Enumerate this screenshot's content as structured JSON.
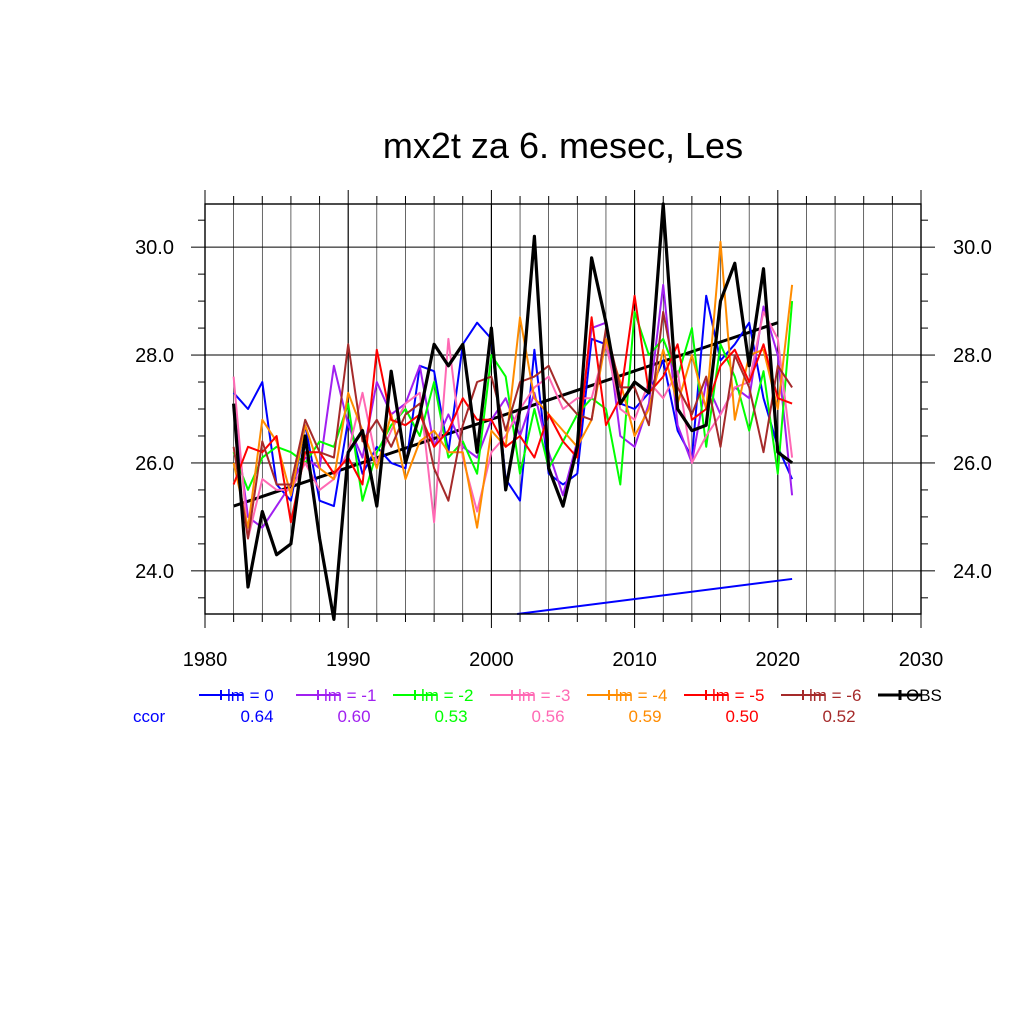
{
  "chart_data": {
    "type": "line",
    "title": "mx2t za 6. mesec, Les",
    "xlabel": "",
    "ylabel": "",
    "xlim": [
      1980,
      2030
    ],
    "ylim": [
      23.2,
      30.8
    ],
    "x_ticks": [
      "1980",
      "1990",
      "2000",
      "2010",
      "2020",
      "2030"
    ],
    "y_ticks": [
      "24.0",
      "26.0",
      "28.0",
      "30.0"
    ],
    "grid": true,
    "years": [
      1982,
      1983,
      1984,
      1985,
      1986,
      1987,
      1988,
      1989,
      1990,
      1991,
      1992,
      1993,
      1994,
      1995,
      1996,
      1997,
      1998,
      1999,
      2000,
      2001,
      2002,
      2003,
      2004,
      2005,
      2006,
      2007,
      2008,
      2009,
      2010,
      2011,
      2012,
      2013,
      2014,
      2015,
      2016,
      2017,
      2018,
      2019,
      2020,
      2021
    ],
    "series": [
      {
        "name": "lm = 0",
        "color": "#0000ff",
        "ccor": "0.64",
        "values": [
          27.3,
          27.0,
          27.5,
          25.6,
          25.3,
          26.7,
          25.3,
          25.2,
          26.8,
          25.8,
          26.3,
          26.0,
          25.9,
          27.8,
          27.7,
          26.2,
          28.2,
          28.6,
          28.3,
          25.7,
          25.3,
          28.1,
          25.8,
          25.6,
          25.8,
          28.3,
          28.2,
          27.1,
          27.0,
          27.3,
          27.9,
          26.6,
          26.1,
          29.1,
          27.9,
          28.2,
          28.6,
          27.2,
          26.3,
          25.7
        ]
      },
      {
        "name": "lm = -1",
        "color": "#a020f0",
        "ccor": "0.60",
        "values": [
          27.0,
          25.0,
          24.8,
          25.2,
          25.6,
          26.1,
          25.9,
          27.8,
          26.7,
          26.1,
          27.5,
          26.9,
          27.1,
          27.8,
          26.3,
          26.9,
          26.3,
          26.1,
          26.8,
          27.2,
          26.5,
          27.3,
          26.2,
          25.4,
          26.4,
          28.5,
          28.6,
          26.5,
          26.3,
          27.1,
          29.3,
          26.7,
          26.0,
          27.5,
          26.9,
          27.4,
          27.2,
          28.9,
          28.0,
          25.4
        ]
      },
      {
        "name": "lm = -2",
        "color": "#00ff00",
        "ccor": "0.53",
        "values": [
          26.2,
          25.5,
          26.1,
          26.3,
          26.2,
          26.0,
          26.4,
          26.3,
          27.1,
          25.3,
          26.2,
          26.7,
          27.0,
          26.5,
          27.5,
          26.1,
          26.4,
          25.8,
          28.0,
          27.6,
          25.8,
          27.0,
          25.9,
          26.4,
          26.9,
          27.2,
          27.0,
          25.6,
          28.8,
          28.0,
          28.3,
          27.6,
          28.5,
          26.3,
          28.2,
          27.6,
          26.6,
          27.7,
          25.8,
          29.0
        ]
      },
      {
        "name": "lm = -3",
        "color": "#ff69b4",
        "ccor": "0.56",
        "values": [
          27.6,
          24.6,
          25.7,
          25.5,
          25.5,
          26.0,
          25.5,
          25.7,
          26.2,
          27.3,
          26.0,
          26.6,
          27.1,
          27.3,
          24.9,
          28.3,
          26.1,
          25.1,
          26.2,
          26.5,
          27.0,
          27.4,
          27.6,
          27.0,
          27.2,
          27.2,
          28.2,
          27.0,
          26.8,
          27.5,
          27.2,
          27.7,
          26.0,
          26.5,
          26.9,
          27.4,
          27.5,
          28.8,
          28.3,
          26.1
        ]
      },
      {
        "name": "lm = -4",
        "color": "#ff8c00",
        "ccor": "0.59",
        "values": [
          26.0,
          24.8,
          26.8,
          26.4,
          25.4,
          26.7,
          25.9,
          25.7,
          27.3,
          26.6,
          25.9,
          26.9,
          25.7,
          26.4,
          26.6,
          26.2,
          26.2,
          24.8,
          26.6,
          26.3,
          28.7,
          27.2,
          26.9,
          26.6,
          26.3,
          26.8,
          28.3,
          27.5,
          26.5,
          27.0,
          28.1,
          27.1,
          28.0,
          27.0,
          30.1,
          26.8,
          28.0,
          28.1,
          27.0,
          29.3
        ]
      },
      {
        "name": "lm = -5",
        "color": "#ff0000",
        "ccor": "0.50",
        "values": [
          25.6,
          26.3,
          26.2,
          26.5,
          24.9,
          26.2,
          26.2,
          25.8,
          26.1,
          25.6,
          28.1,
          26.8,
          26.7,
          26.9,
          26.3,
          26.6,
          27.2,
          26.8,
          26.8,
          26.3,
          26.5,
          26.1,
          26.9,
          26.4,
          26.1,
          28.7,
          26.7,
          27.2,
          29.1,
          27.3,
          27.6,
          28.2,
          26.8,
          27.0,
          27.8,
          28.1,
          27.5,
          28.2,
          27.2,
          27.1
        ]
      },
      {
        "name": "lm = -6",
        "color": "#a52a2a",
        "ccor": "0.52",
        "values": [
          26.3,
          24.6,
          26.4,
          25.6,
          25.6,
          26.8,
          26.2,
          26.1,
          28.2,
          26.4,
          26.8,
          26.3,
          26.9,
          27.1,
          25.9,
          25.3,
          26.7,
          27.5,
          27.6,
          26.6,
          27.5,
          27.6,
          27.8,
          27.2,
          26.9,
          26.8,
          28.5,
          27.4,
          27.4,
          26.7,
          28.8,
          27.4,
          26.9,
          27.6,
          26.3,
          28.0,
          27.4,
          26.2,
          27.8,
          27.4
        ]
      },
      {
        "name": "OBS",
        "color": "#000000",
        "ccor": "",
        "values": [
          27.1,
          23.7,
          25.1,
          24.3,
          24.5,
          26.5,
          24.6,
          23.1,
          26.2,
          26.6,
          25.2,
          27.7,
          26.0,
          26.9,
          28.2,
          27.8,
          28.2,
          26.2,
          28.5,
          25.5,
          27.0,
          30.2,
          25.9,
          25.2,
          26.3,
          29.8,
          28.6,
          27.1,
          27.5,
          27.3,
          30.8,
          27.0,
          26.6,
          26.7,
          29.0,
          29.7,
          27.8,
          29.6,
          26.2,
          26.0
        ]
      }
    ],
    "trend_lines": [
      {
        "name": "obs-trend",
        "color": "#000000",
        "x": [
          1982,
          2020
        ],
        "y": [
          25.2,
          28.6
        ]
      },
      {
        "name": "ccor-trend",
        "color": "#0000ff",
        "x": [
          2001.8,
          2021
        ],
        "y": [
          23.2,
          23.85
        ]
      }
    ],
    "ccor_label": "ccor"
  }
}
